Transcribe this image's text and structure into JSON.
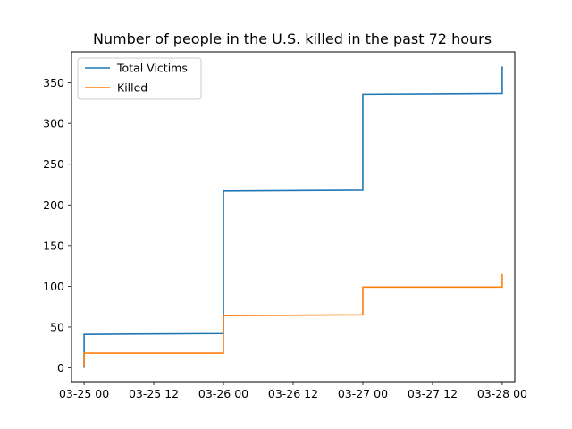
{
  "chart_data": {
    "type": "line",
    "title": "Number of people in the U.S. killed in the past 72 hours",
    "xlabel": "",
    "ylabel": "",
    "x_axis": {
      "kind": "datetime",
      "range": [
        "03-24 21:50",
        "03-28 02:10"
      ],
      "ticks": [
        {
          "value": "03-25 00:00",
          "label": "03-25 00"
        },
        {
          "value": "03-25 12:00",
          "label": "03-25 12"
        },
        {
          "value": "03-26 00:00",
          "label": "03-26 00"
        },
        {
          "value": "03-26 12:00",
          "label": "03-26 12"
        },
        {
          "value": "03-27 00:00",
          "label": "03-27 00"
        },
        {
          "value": "03-27 12:00",
          "label": "03-27 12"
        },
        {
          "value": "03-28 00:00",
          "label": "03-28 00"
        }
      ]
    },
    "y_axis": {
      "range": [
        -17,
        388
      ],
      "ticks": [
        0,
        50,
        100,
        150,
        200,
        250,
        300,
        350
      ]
    },
    "grid": false,
    "legend_position": "top-left",
    "series": [
      {
        "name": "Total Victims",
        "color": "#1f77b4",
        "points": [
          [
            "03-25 00:00",
            0
          ],
          [
            "03-25 00:00",
            41
          ],
          [
            "03-25 23:59",
            42
          ],
          [
            "03-26 00:00",
            42
          ],
          [
            "03-26 00:00",
            217
          ],
          [
            "03-26 23:59",
            218
          ],
          [
            "03-27 00:00",
            218
          ],
          [
            "03-27 00:00",
            336
          ],
          [
            "03-27 23:59",
            337
          ],
          [
            "03-28 00:00",
            337
          ],
          [
            "03-28 00:00",
            370
          ]
        ]
      },
      {
        "name": "Killed",
        "color": "#ff7f0e",
        "points": [
          [
            "03-25 00:00",
            1
          ],
          [
            "03-25 00:00",
            18
          ],
          [
            "03-25 23:59",
            18
          ],
          [
            "03-26 00:00",
            18
          ],
          [
            "03-26 00:00",
            64
          ],
          [
            "03-26 23:59",
            65
          ],
          [
            "03-27 00:00",
            65
          ],
          [
            "03-27 00:00",
            99
          ],
          [
            "03-27 23:59",
            99
          ],
          [
            "03-28 00:00",
            99
          ],
          [
            "03-28 00:00",
            115
          ]
        ]
      }
    ]
  }
}
